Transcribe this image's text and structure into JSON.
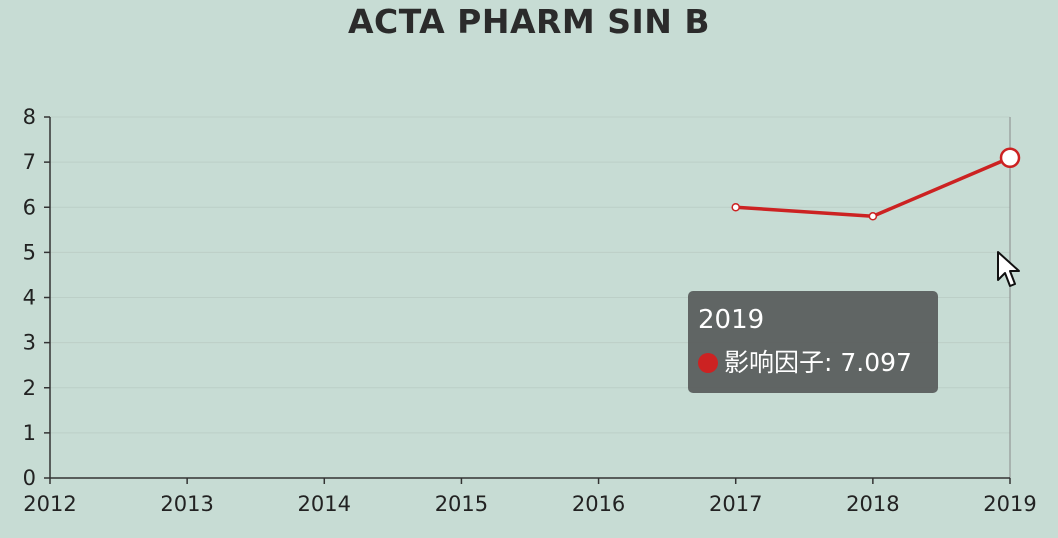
{
  "chart_data": {
    "type": "line",
    "title": "ACTA PHARM SIN B",
    "x": [
      "2012",
      "2013",
      "2014",
      "2015",
      "2016",
      "2017",
      "2018",
      "2019"
    ],
    "series": [
      {
        "name": "影响因子",
        "points": [
          {
            "x": "2017",
            "y": 6.0
          },
          {
            "x": "2018",
            "y": 5.8
          },
          {
            "x": "2019",
            "y": 7.097
          }
        ]
      }
    ],
    "ylim": [
      0,
      8
    ],
    "yticks": [
      "0",
      "1",
      "2",
      "3",
      "4",
      "5",
      "6",
      "7",
      "8"
    ],
    "xlabel": "",
    "ylabel": "",
    "grid": true,
    "line_color": "#cc2222",
    "highlight": "2019"
  },
  "tooltip": {
    "title": "2019",
    "series_name": "影响因子",
    "value": "7.097",
    "row": "影响因子: 7.097",
    "dot_color": "#cc2222"
  },
  "colors": {
    "background": "#c7dcd4",
    "line": "#cc2222",
    "tooltip_bg": "#5c605f"
  }
}
